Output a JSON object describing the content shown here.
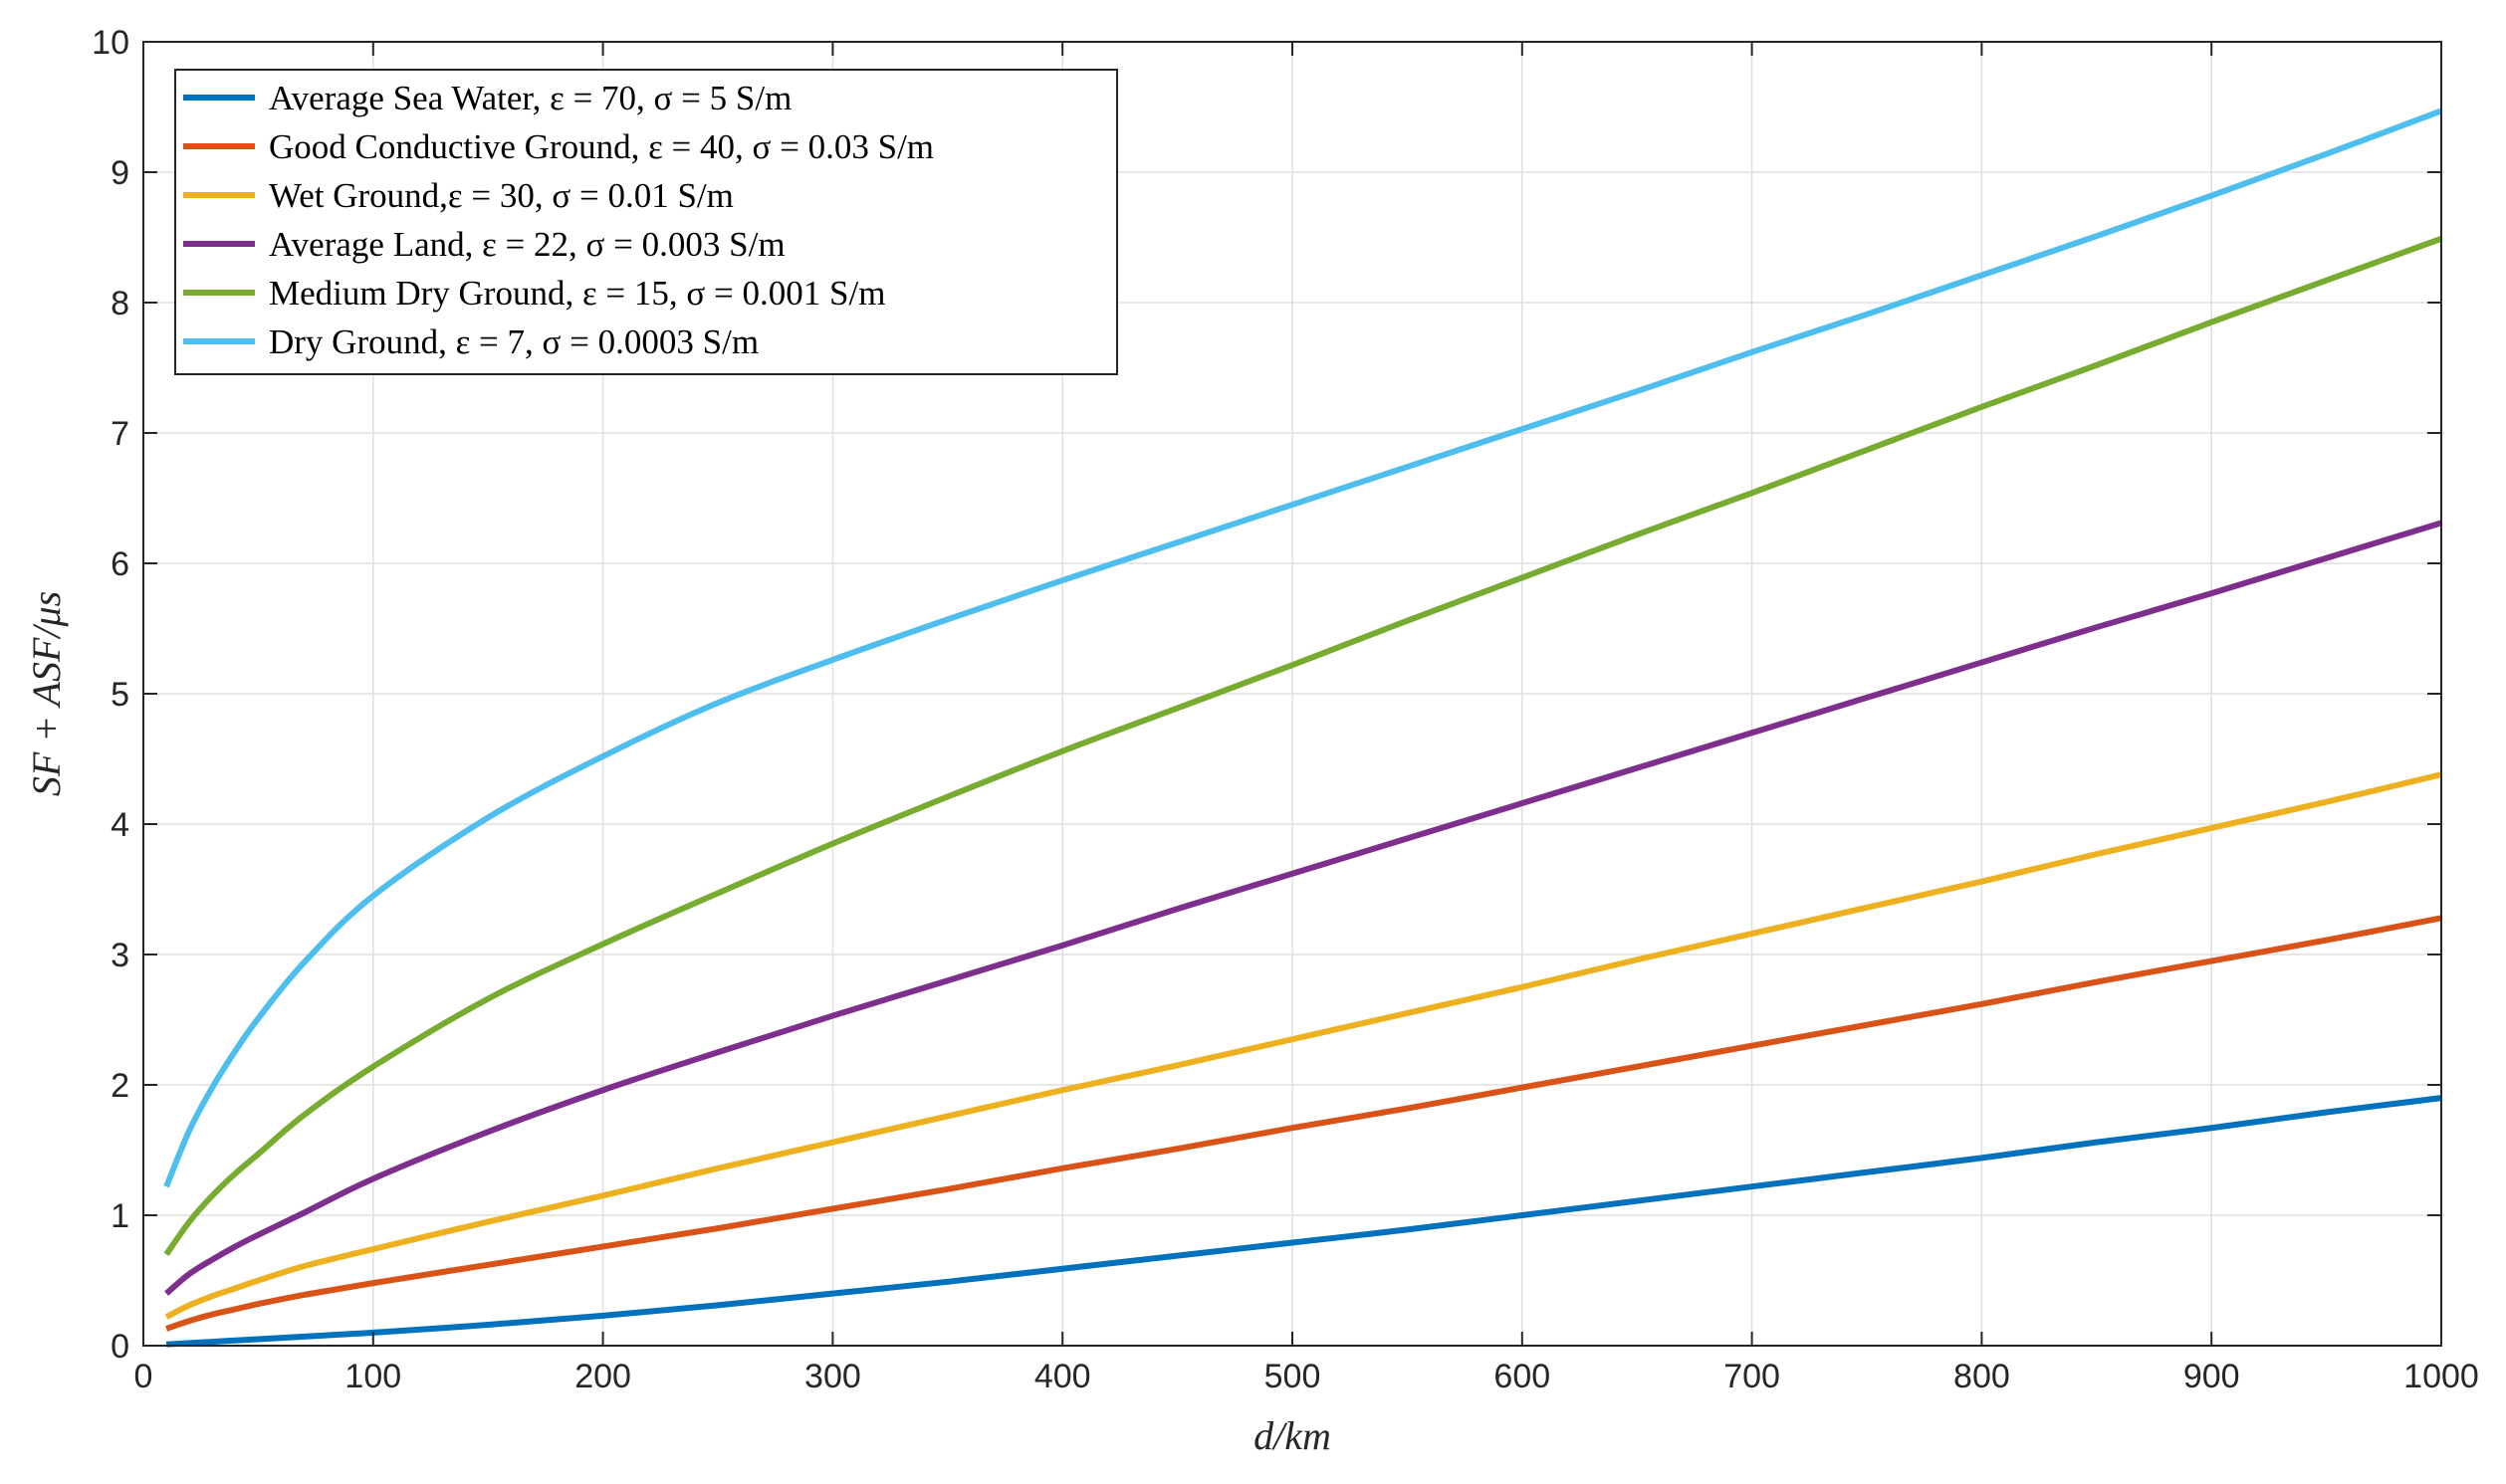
{
  "chart_data": {
    "type": "line",
    "xlabel": "d/km",
    "ylabel": "SF + ASF/μs",
    "xlim": [
      0,
      1000
    ],
    "ylim": [
      0,
      10
    ],
    "x_ticks": [
      0,
      100,
      200,
      300,
      400,
      500,
      600,
      700,
      800,
      900,
      1000
    ],
    "y_ticks": [
      0,
      1,
      2,
      3,
      4,
      5,
      6,
      7,
      8,
      9,
      10
    ],
    "grid": true,
    "legend_position": "top-left",
    "x": [
      10,
      20,
      30,
      40,
      50,
      70,
      100,
      150,
      200,
      250,
      300,
      350,
      400,
      450,
      500,
      550,
      600,
      650,
      700,
      750,
      800,
      850,
      900,
      950,
      1000
    ],
    "series": [
      {
        "name": "Average Sea Water, ε = 70, σ = 5 S/m",
        "color": "#0072BD",
        "values": [
          0.01,
          0.02,
          0.03,
          0.04,
          0.05,
          0.07,
          0.1,
          0.16,
          0.23,
          0.31,
          0.4,
          0.49,
          0.59,
          0.69,
          0.79,
          0.89,
          1.0,
          1.11,
          1.22,
          1.33,
          1.44,
          1.56,
          1.67,
          1.79,
          1.9
        ]
      },
      {
        "name": "Good Conductive Ground, ε = 40, σ = 0.03 S/m",
        "color": "#D95319",
        "values": [
          0.13,
          0.19,
          0.24,
          0.28,
          0.32,
          0.39,
          0.48,
          0.62,
          0.76,
          0.9,
          1.05,
          1.2,
          1.36,
          1.51,
          1.67,
          1.82,
          1.98,
          2.14,
          2.3,
          2.46,
          2.62,
          2.79,
          2.95,
          3.11,
          3.28
        ]
      },
      {
        "name": "Wet Ground,ε = 30, σ = 0.01 S/m",
        "color": "#EDB120",
        "values": [
          0.22,
          0.31,
          0.38,
          0.44,
          0.5,
          0.61,
          0.74,
          0.95,
          1.15,
          1.36,
          1.56,
          1.76,
          1.96,
          2.15,
          2.35,
          2.55,
          2.75,
          2.96,
          3.16,
          3.36,
          3.56,
          3.77,
          3.97,
          4.17,
          4.38
        ]
      },
      {
        "name": "Average Land, ε = 22, σ = 0.003 S/m",
        "color": "#7E2F8E",
        "values": [
          0.4,
          0.55,
          0.66,
          0.76,
          0.85,
          1.02,
          1.28,
          1.64,
          1.96,
          2.25,
          2.53,
          2.8,
          3.07,
          3.35,
          3.62,
          3.89,
          4.16,
          4.43,
          4.7,
          4.97,
          5.24,
          5.51,
          5.77,
          6.04,
          6.31
        ]
      },
      {
        "name": "Medium Dry Ground, ε = 15, σ = 0.001 S/m",
        "color": "#77AC30",
        "values": [
          0.7,
          0.95,
          1.15,
          1.32,
          1.47,
          1.77,
          2.14,
          2.66,
          3.08,
          3.47,
          3.85,
          4.21,
          4.56,
          4.89,
          5.22,
          5.56,
          5.89,
          6.22,
          6.54,
          6.87,
          7.2,
          7.52,
          7.85,
          8.17,
          8.49
        ]
      },
      {
        "name": "Dry Ground, ε = 7, σ = 0.0003 S/m",
        "color": "#4DBEEE",
        "values": [
          1.22,
          1.65,
          1.98,
          2.26,
          2.51,
          2.94,
          3.45,
          4.05,
          4.52,
          4.93,
          5.26,
          5.57,
          5.87,
          6.16,
          6.45,
          6.74,
          7.03,
          7.32,
          7.62,
          7.91,
          8.21,
          8.51,
          8.82,
          9.14,
          9.47
        ]
      }
    ]
  }
}
